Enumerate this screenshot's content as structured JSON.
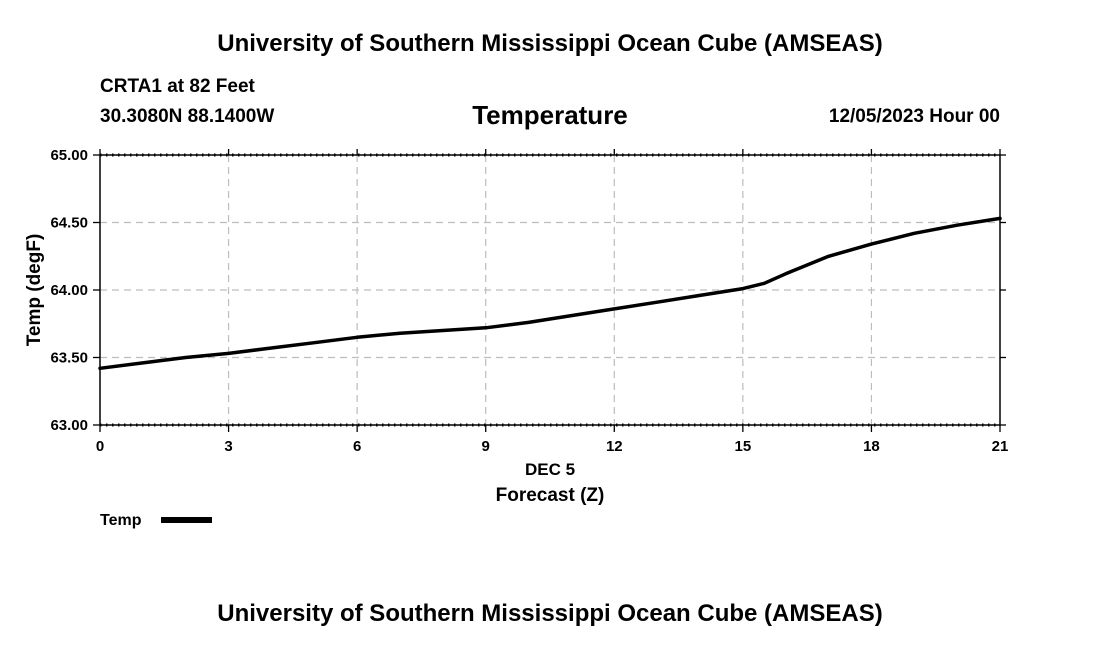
{
  "header": {
    "top_title": "University of Southern Mississippi Ocean Cube (AMSEAS)",
    "station": "CRTA1 at 82 Feet",
    "coords": "30.3080N  88.1400W",
    "variable": "Temperature",
    "datetime": "12/05/2023 Hour 00",
    "bottom_title": "University of Southern Mississippi Ocean Cube (AMSEAS)"
  },
  "chart_data": {
    "type": "line",
    "title": "Temperature",
    "xlabel": "Forecast (Z)",
    "xsublabel": "DEC 5",
    "ylabel": "Temp (degF)",
    "xlim": [
      0,
      21
    ],
    "ylim": [
      63.0,
      65.0
    ],
    "xticks": [
      0,
      3,
      6,
      9,
      12,
      15,
      18,
      21
    ],
    "xtick_labels": [
      "0",
      "3",
      "6",
      "9",
      "12",
      "15",
      "18",
      "21"
    ],
    "yticks": [
      63.0,
      63.5,
      64.0,
      64.5,
      65.0
    ],
    "ytick_labels": [
      "63.00",
      "63.50",
      "64.00",
      "64.50",
      "65.00"
    ],
    "grid": true,
    "legend_position": "bottom-left",
    "series": [
      {
        "name": "Temp",
        "color": "#000000",
        "x": [
          0,
          1,
          2,
          3,
          4,
          5,
          6,
          7,
          8,
          9,
          10,
          11,
          12,
          13,
          14,
          15,
          15.5,
          16,
          17,
          18,
          19,
          20,
          21
        ],
        "y": [
          63.42,
          63.46,
          63.5,
          63.53,
          63.57,
          63.61,
          63.65,
          63.68,
          63.7,
          63.72,
          63.76,
          63.81,
          63.86,
          63.91,
          63.96,
          64.01,
          64.05,
          64.12,
          64.25,
          64.34,
          64.42,
          64.48,
          64.53
        ]
      }
    ]
  }
}
